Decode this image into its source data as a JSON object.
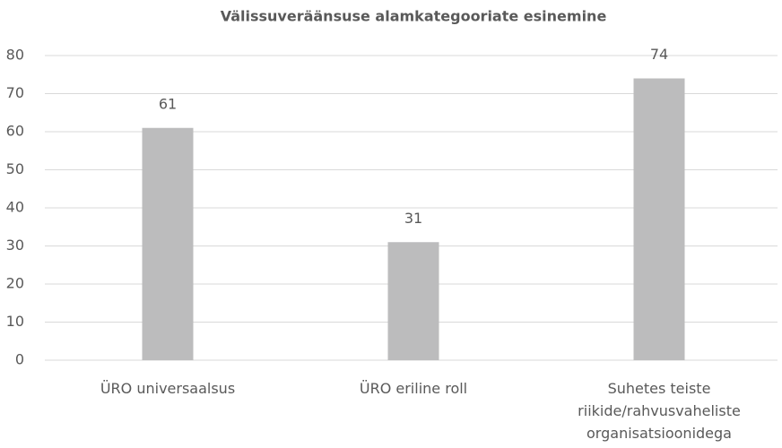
{
  "chart_data": {
    "type": "bar",
    "title": "Välissuveräänsuse alamkategooriate esinemine",
    "categories": [
      "ÜRO universaalsus",
      "ÜRO eriline roll",
      "Suhetes teiste riikide/rahvusvaheliste organisatsioonidega"
    ],
    "values": [
      61,
      31,
      74
    ],
    "color": "#bcbcbd",
    "ylim": [
      0,
      80
    ],
    "yticks": [
      0,
      10,
      20,
      30,
      40,
      50,
      60,
      70,
      80
    ],
    "grid": true
  }
}
